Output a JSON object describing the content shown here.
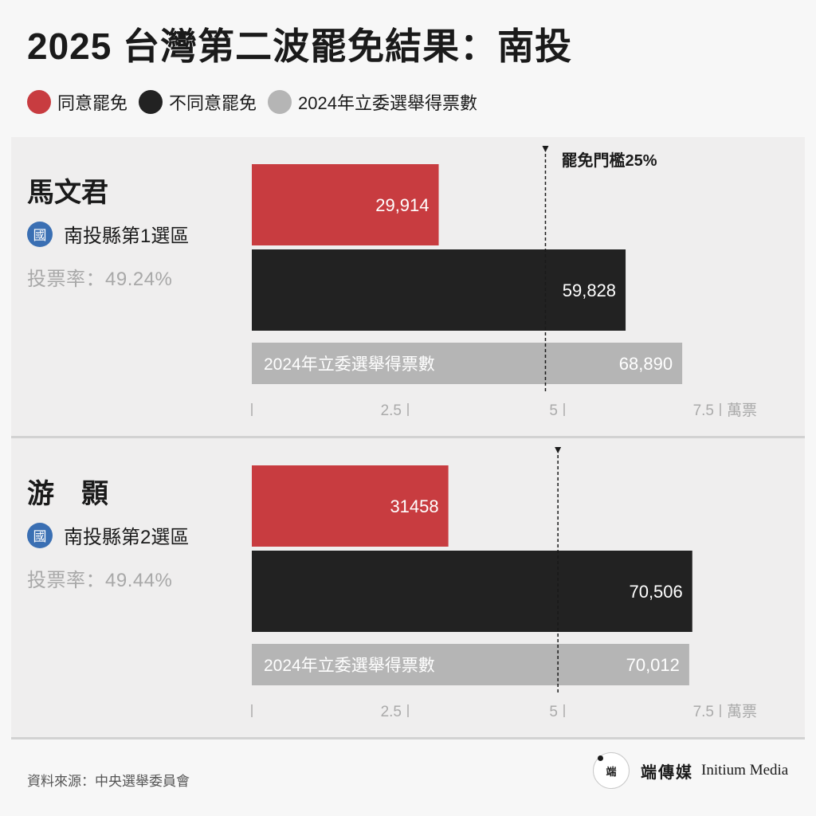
{
  "title": "2025 台灣第二波罷免結果：南投",
  "legend": [
    {
      "label": "同意罷免",
      "color": "#c83c40"
    },
    {
      "label": "不同意罷免",
      "color": "#222222"
    },
    {
      "label": "2024年立委選舉得票數",
      "color": "#b5b5b5"
    }
  ],
  "threshold_label": "罷免門檻25%",
  "bar_inline_label": "2024年立委選舉得票數",
  "unit_label": "萬票",
  "chart_data": [
    {
      "type": "bar",
      "candidate": "馬文君",
      "district": "南投縣第1選區",
      "district_badge": "國",
      "turnout": "投票率：49.24%",
      "series": [
        {
          "name": "同意罷免",
          "value": 29914,
          "label": "29,914",
          "color": "#c83c40"
        },
        {
          "name": "不同意罷免",
          "value": 59828,
          "label": "59,828",
          "color": "#222222"
        },
        {
          "name": "2024年立委選舉得票數",
          "value": 68890,
          "label": "68,890",
          "color": "#b5b5b5"
        }
      ],
      "threshold": 47000,
      "xlim": [
        0,
        75000
      ],
      "xticks": [
        {
          "value": 0,
          "label": ""
        },
        {
          "value": 25000,
          "label": "2.5"
        },
        {
          "value": 50000,
          "label": "5"
        },
        {
          "value": 75000,
          "label": "7.5"
        }
      ]
    },
    {
      "type": "bar",
      "candidate": "游　顥",
      "district": "南投縣第2選區",
      "district_badge": "國",
      "turnout": "投票率：49.44%",
      "series": [
        {
          "name": "同意罷免",
          "value": 31458,
          "label": "31458",
          "color": "#c83c40"
        },
        {
          "name": "不同意罷免",
          "value": 70506,
          "label": "70,506",
          "color": "#222222"
        },
        {
          "name": "2024年立委選舉得票數",
          "value": 70012,
          "label": "70,012",
          "color": "#b5b5b5"
        }
      ],
      "threshold": 49000,
      "xlim": [
        0,
        75000
      ],
      "xticks": [
        {
          "value": 0,
          "label": ""
        },
        {
          "value": 25000,
          "label": "2.5"
        },
        {
          "value": 50000,
          "label": "5"
        },
        {
          "value": 75000,
          "label": "7.5"
        }
      ]
    }
  ],
  "source": "資料來源：中央選舉委員會",
  "brand": {
    "logo_text": "端",
    "name_zh": "端傳媒",
    "name_en": "Initium Media"
  }
}
